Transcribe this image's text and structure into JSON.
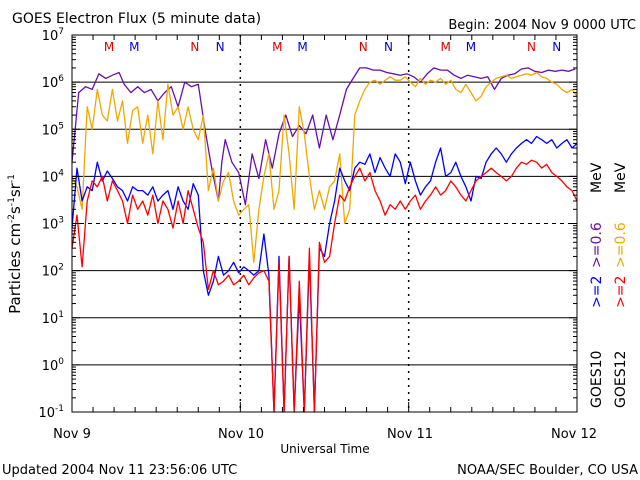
{
  "chart_data": {
    "type": "line",
    "title": "GOES Electron Flux (5 minute data)",
    "begin_label": "Begin: 2004 Nov 9 0000 UTC",
    "xlabel": "Universal Time",
    "ylabel_main": "Particles cm",
    "ylabel_sup1": "-2",
    "ylabel_mid1": "s",
    "ylabel_sup2": "-1",
    "ylabel_mid2": "sr",
    "ylabel_sup3": "-1",
    "x_ticks": [
      "Nov 9",
      "Nov 10",
      "Nov 11",
      "Nov 12"
    ],
    "y_log_range": [
      -1,
      7
    ],
    "y_ticks": [
      {
        "exp": -1,
        "label_base": "10",
        "label_exp": "-1"
      },
      {
        "exp": 0,
        "label_base": "10",
        "label_exp": "0"
      },
      {
        "exp": 1,
        "label_base": "10",
        "label_exp": "1"
      },
      {
        "exp": 2,
        "label_base": "10",
        "label_exp": "2"
      },
      {
        "exp": 3,
        "label_base": "10",
        "label_exp": "3"
      },
      {
        "exp": 4,
        "label_base": "10",
        "label_exp": "4"
      },
      {
        "exp": 5,
        "label_base": "10",
        "label_exp": "5"
      },
      {
        "exp": 6,
        "label_base": "10",
        "label_exp": "6"
      },
      {
        "exp": 7,
        "label_base": "10",
        "label_exp": "7"
      }
    ],
    "hlines_solid": [
      0,
      1,
      2,
      4,
      5,
      6
    ],
    "hline_dashed": 3,
    "mn_markers": [
      {
        "day": 0.22,
        "label": "M",
        "color": "#e00000"
      },
      {
        "day": 0.37,
        "label": "M",
        "color": "#0000e0"
      },
      {
        "day": 0.73,
        "label": "N",
        "color": "#e00000"
      },
      {
        "day": 0.88,
        "label": "N",
        "color": "#0000e0"
      },
      {
        "day": 1.22,
        "label": "M",
        "color": "#e00000"
      },
      {
        "day": 1.37,
        "label": "M",
        "color": "#0000e0"
      },
      {
        "day": 1.73,
        "label": "N",
        "color": "#e00000"
      },
      {
        "day": 1.88,
        "label": "N",
        "color": "#0000e0"
      },
      {
        "day": 2.22,
        "label": "M",
        "color": "#e00000"
      },
      {
        "day": 2.37,
        "label": "M",
        "color": "#0000e0"
      },
      {
        "day": 2.73,
        "label": "N",
        "color": "#e00000"
      },
      {
        "day": 2.88,
        "label": "N",
        "color": "#0000e0"
      }
    ],
    "legend": {
      "goes10_label": "GOES10",
      "goes12_label": "GOES12",
      "g10_ge2": ">=2",
      "g10_ge06": ">=0.6",
      "g10_mev": "MeV",
      "g12_ge2": ">=2",
      "g12_ge06": ">=0.6",
      "g12_mev": "MeV"
    },
    "series": [
      {
        "name": "GOES10 >=0.6 MeV",
        "color": "#6a0dad",
        "x": [
          0.0,
          0.04,
          0.08,
          0.12,
          0.16,
          0.2,
          0.24,
          0.28,
          0.31,
          0.35,
          0.39,
          0.43,
          0.47,
          0.51,
          0.55,
          0.59,
          0.63,
          0.67,
          0.71,
          0.75,
          0.79,
          0.83,
          0.87,
          0.89,
          0.91,
          0.95,
          0.99,
          1.03,
          1.07,
          1.11,
          1.15,
          1.19,
          1.23,
          1.27,
          1.31,
          1.35,
          1.39,
          1.43,
          1.47,
          1.51,
          1.55,
          1.59,
          1.63,
          1.67,
          1.71,
          1.75,
          1.79,
          1.83,
          1.87,
          1.91,
          1.95,
          1.99,
          2.03,
          2.07,
          2.11,
          2.15,
          2.19,
          2.23,
          2.27,
          2.31,
          2.35,
          2.39,
          2.43,
          2.47,
          2.51,
          2.55,
          2.59,
          2.63,
          2.67,
          2.71,
          2.75,
          2.79,
          2.83,
          2.87,
          2.91,
          2.95,
          2.99
        ],
        "y": [
          20000.0,
          600000.0,
          800000.0,
          700000.0,
          1500000.0,
          1200000.0,
          1400000.0,
          1600000.0,
          900000.0,
          600000.0,
          800000.0,
          600000.0,
          700000.0,
          400000.0,
          600000.0,
          800000.0,
          300000.0,
          1000000.0,
          800000.0,
          900000.0,
          100000.0,
          15000.0,
          3000.0,
          20000.0,
          60000.0,
          20000.0,
          12000.0,
          2500.0,
          30000.0,
          9000.0,
          60000.0,
          15000.0,
          80000.0,
          200000.0,
          70000.0,
          120000.0,
          80000.0,
          200000.0,
          40000.0,
          200000.0,
          60000.0,
          200000.0,
          700000.0,
          1200000.0,
          2000000.0,
          2000000.0,
          1800000.0,
          1800000.0,
          1600000.0,
          1500000.0,
          1400000.0,
          1500000.0,
          1300000.0,
          1000000.0,
          1500000.0,
          2000000.0,
          1800000.0,
          1800000.0,
          1400000.0,
          1200000.0,
          1400000.0,
          1300000.0,
          1200000.0,
          1300000.0,
          700000.0,
          1200000.0,
          1400000.0,
          1500000.0,
          1900000.0,
          2000000.0,
          1700000.0,
          1600000.0,
          1800000.0,
          1700000.0,
          1800000.0,
          1700000.0,
          1900000.0
        ]
      },
      {
        "name": "GOES12 >=0.6 MeV",
        "color": "#f0a800",
        "x": [
          0.0,
          0.03,
          0.06,
          0.09,
          0.12,
          0.15,
          0.18,
          0.21,
          0.24,
          0.27,
          0.3,
          0.33,
          0.36,
          0.39,
          0.42,
          0.45,
          0.48,
          0.51,
          0.54,
          0.57,
          0.6,
          0.63,
          0.66,
          0.69,
          0.72,
          0.75,
          0.78,
          0.81,
          0.84,
          0.87,
          0.9,
          0.93,
          0.96,
          0.99,
          1.02,
          1.05,
          1.08,
          1.11,
          1.14,
          1.17,
          1.2,
          1.23,
          1.26,
          1.29,
          1.32,
          1.35,
          1.38,
          1.41,
          1.44,
          1.47,
          1.5,
          1.53,
          1.56,
          1.59,
          1.62,
          1.65,
          1.68,
          1.71,
          1.74,
          1.77,
          1.8,
          1.83,
          1.86,
          1.89,
          1.92,
          1.95,
          1.98,
          2.01,
          2.04,
          2.07,
          2.1,
          2.13,
          2.16,
          2.19,
          2.22,
          2.25,
          2.28,
          2.31,
          2.34,
          2.37,
          2.4,
          2.43,
          2.46,
          2.49,
          2.52,
          2.55,
          2.58,
          2.61,
          2.64,
          2.67,
          2.7,
          2.73,
          2.76,
          2.79,
          2.82,
          2.85,
          2.88,
          2.91,
          2.94,
          2.97,
          3.0
        ],
        "y": [
          10000.0,
          6000.0,
          2000.0,
          300000.0,
          100000.0,
          700000.0,
          200000.0,
          150000.0,
          700000.0,
          150000.0,
          400000.0,
          50000.0,
          250000.0,
          300000.0,
          50000.0,
          200000.0,
          30000.0,
          400000.0,
          60000.0,
          900000.0,
          200000.0,
          300000.0,
          100000.0,
          300000.0,
          100000.0,
          60000.0,
          200000.0,
          5000.0,
          15000.0,
          3000.0,
          8000.0,
          12000.0,
          3000.0,
          1500.0,
          2000.0,
          2500.0,
          150.0,
          2000.0,
          10000.0,
          30000.0,
          2000.0,
          5000.0,
          200000.0,
          30000.0,
          2000.0,
          300000.0,
          80000.0,
          10000.0,
          2000.0,
          5000.0,
          2000.0,
          6000.0,
          8000.0,
          30000.0,
          1000.0,
          2000.0,
          200000.0,
          400000.0,
          700000.0,
          1000000.0,
          1100000.0,
          900000.0,
          1100000.0,
          1300000.0,
          1100000.0,
          1100000.0,
          1300000.0,
          1000000.0,
          800000.0,
          1200000.0,
          900000.0,
          1100000.0,
          1000000.0,
          1200000.0,
          900000.0,
          1100000.0,
          700000.0,
          600000.0,
          900000.0,
          600000.0,
          400000.0,
          500000.0,
          800000.0,
          1000000.0,
          1200000.0,
          1300000.0,
          1400000.0,
          1200000.0,
          1300000.0,
          1400000.0,
          1500000.0,
          1400000.0,
          1600000.0,
          1300000.0,
          1200000.0,
          1000000.0,
          900000.0,
          700000.0,
          600000.0,
          700000.0,
          500000.0
        ]
      },
      {
        "name": "GOES10 >=2 MeV",
        "color": "#0000ff",
        "x": [
          0.0,
          0.03,
          0.06,
          0.09,
          0.12,
          0.15,
          0.18,
          0.21,
          0.24,
          0.27,
          0.3,
          0.33,
          0.36,
          0.39,
          0.42,
          0.45,
          0.48,
          0.51,
          0.54,
          0.57,
          0.6,
          0.63,
          0.66,
          0.69,
          0.72,
          0.75,
          0.78,
          0.81,
          0.84,
          0.87,
          0.9,
          0.93,
          0.96,
          0.99,
          1.02,
          1.05,
          1.08,
          1.11,
          1.14,
          1.17,
          1.2,
          1.23,
          1.26,
          1.29,
          1.32,
          1.35,
          1.38,
          1.41,
          1.44,
          1.47,
          1.5,
          1.53,
          1.56,
          1.59,
          1.62,
          1.65,
          1.68,
          1.71,
          1.74,
          1.77,
          1.8,
          1.83,
          1.86,
          1.89,
          1.92,
          1.95,
          1.98,
          2.01,
          2.04,
          2.07,
          2.1,
          2.13,
          2.16,
          2.19,
          2.22,
          2.25,
          2.28,
          2.31,
          2.34,
          2.37,
          2.4,
          2.43,
          2.46,
          2.49,
          2.52,
          2.55,
          2.58,
          2.61,
          2.64,
          2.67,
          2.7,
          2.73,
          2.76,
          2.79,
          2.82,
          2.85,
          2.88,
          2.91,
          2.94,
          2.97,
          3.0
        ],
        "y": [
          800.0,
          15000.0,
          3000.0,
          6000.0,
          5000.0,
          20000.0,
          8000.0,
          13000.0,
          9000.0,
          6000.0,
          5000.0,
          3000.0,
          6000.0,
          5000.0,
          5000.0,
          4000.0,
          6000.0,
          3000.0,
          4000.0,
          5000.0,
          2000.0,
          6000.0,
          3000.0,
          2000.0,
          7000.0,
          4000.0,
          100.0,
          30.0,
          60.0,
          200.0,
          80.0,
          100.0,
          150.0,
          90.0,
          120.0,
          100.0,
          80.0,
          100.0,
          600.0,
          80.0,
          0.1,
          200.0,
          0.1,
          200.0,
          0.1,
          30.0,
          0.1,
          200.0,
          0.1,
          300.0,
          200.0,
          1000.0,
          3000.0,
          15000.0,
          8000.0,
          5000.0,
          15000.0,
          20000.0,
          18000.0,
          30000.0,
          12000.0,
          25000.0,
          15000.0,
          10000.0,
          30000.0,
          20000.0,
          7000.0,
          20000.0,
          8000.0,
          4000.0,
          6000.0,
          8000.0,
          20000.0,
          40000.0,
          10000.0,
          12000.0,
          20000.0,
          10000.0,
          6000.0,
          3000.0,
          10000.0,
          9000.0,
          20000.0,
          30000.0,
          40000.0,
          30000.0,
          20000.0,
          30000.0,
          40000.0,
          50000.0,
          60000.0,
          50000.0,
          70000.0,
          60000.0,
          50000.0,
          60000.0,
          40000.0,
          50000.0,
          60000.0,
          40000.0,
          50000.0
        ]
      },
      {
        "name": "GOES12 >=2 MeV",
        "color": "#ff0000",
        "x": [
          0.0,
          0.03,
          0.06,
          0.09,
          0.12,
          0.15,
          0.18,
          0.21,
          0.24,
          0.27,
          0.3,
          0.33,
          0.36,
          0.39,
          0.42,
          0.45,
          0.48,
          0.51,
          0.54,
          0.57,
          0.6,
          0.63,
          0.66,
          0.69,
          0.72,
          0.75,
          0.78,
          0.81,
          0.84,
          0.87,
          0.9,
          0.93,
          0.96,
          0.99,
          1.02,
          1.05,
          1.08,
          1.11,
          1.14,
          1.17,
          1.2,
          1.23,
          1.26,
          1.29,
          1.32,
          1.35,
          1.38,
          1.41,
          1.44,
          1.47,
          1.5,
          1.53,
          1.56,
          1.59,
          1.62,
          1.65,
          1.68,
          1.71,
          1.74,
          1.77,
          1.8,
          1.83,
          1.86,
          1.89,
          1.92,
          1.95,
          1.98,
          2.01,
          2.04,
          2.07,
          2.1,
          2.13,
          2.16,
          2.19,
          2.22,
          2.25,
          2.28,
          2.31,
          2.34,
          2.37,
          2.4,
          2.43,
          2.46,
          2.49,
          2.52,
          2.55,
          2.58,
          2.61,
          2.64,
          2.67,
          2.7,
          2.73,
          2.76,
          2.79,
          2.82,
          2.85,
          2.88,
          2.91,
          2.94,
          2.97,
          3.0
        ],
        "y": [
          300.0,
          1500.0,
          120.0,
          3000.0,
          8000.0,
          6000.0,
          10000.0,
          3000.0,
          8000.0,
          5000.0,
          3000.0,
          1000.0,
          4000.0,
          2000.0,
          3000.0,
          1500.0,
          4000.0,
          1000.0,
          3000.0,
          2000.0,
          800.0,
          3000.0,
          1000.0,
          5000.0,
          2000.0,
          800.0,
          400.0,
          40.0,
          100.0,
          50.0,
          60.0,
          80.0,
          50.0,
          60.0,
          80.0,
          50.0,
          70.0,
          90.0,
          100.0,
          60.0,
          0.1,
          150.0,
          0.1,
          200.0,
          0.1,
          60.0,
          0.1,
          300.0,
          0.1,
          400.0,
          150.0,
          200.0,
          1000.0,
          4000.0,
          3000.0,
          6000.0,
          10000.0,
          15000.0,
          8000.0,
          12000.0,
          5000.0,
          3000.0,
          1500.0,
          2500.0,
          2000.0,
          3000.0,
          2000.0,
          3000.0,
          4000.0,
          2000.0,
          3000.0,
          4000.0,
          6000.0,
          4000.0,
          5000.0,
          8000.0,
          6000.0,
          4000.0,
          3000.0,
          5000.0,
          8000.0,
          10000.0,
          12000.0,
          15000.0,
          12000.0,
          10000.0,
          8000.0,
          10000.0,
          15000.0,
          20000.0,
          18000.0,
          22000.0,
          20000.0,
          15000.0,
          18000.0,
          12000.0,
          10000.0,
          8000.0,
          6000.0,
          5000.0,
          3000.0
        ]
      }
    ],
    "footer_left": "Updated 2004 Nov 11 23:56:06 UTC",
    "footer_right": "NOAA/SEC Boulder, CO USA"
  }
}
